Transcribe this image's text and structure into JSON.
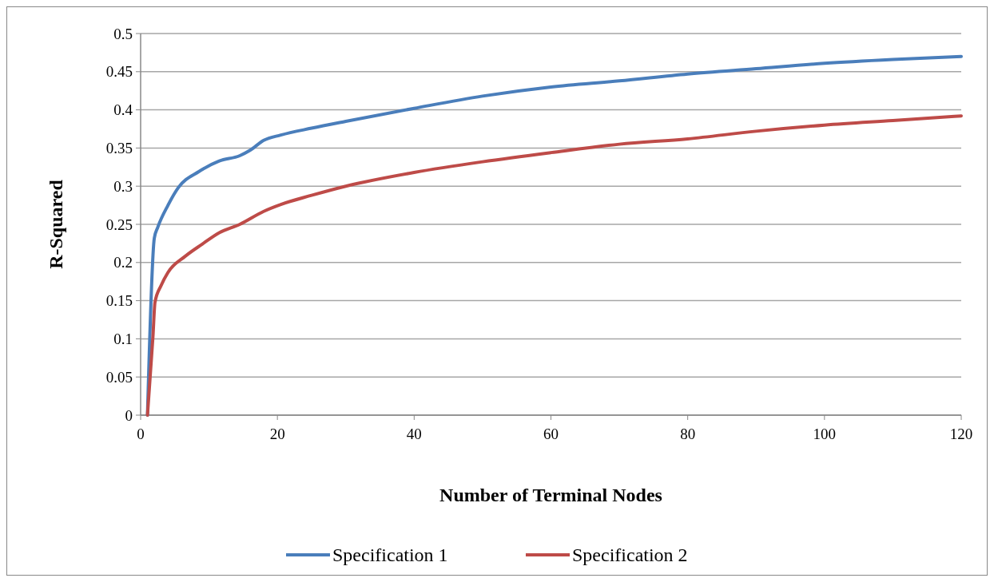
{
  "chart_data": {
    "type": "line",
    "xlabel": "Number of Terminal Nodes",
    "ylabel": "R-Squared",
    "xlim": [
      0,
      120
    ],
    "xticks": [
      0,
      20,
      40,
      60,
      80,
      100,
      120
    ],
    "ylim": [
      0,
      0.5
    ],
    "yticks": [
      0,
      0.05,
      0.1,
      0.15,
      0.2,
      0.25,
      0.3,
      0.35,
      0.4,
      0.45,
      0.5
    ],
    "grid": "y",
    "legend": "bottom",
    "marker": "none",
    "line_style": "solid",
    "series": [
      {
        "name": "Specification 1",
        "color": "#4a7ebb",
        "x": [
          1,
          2,
          2.5,
          4,
          5.5,
          8.5,
          11.5,
          14.5,
          16,
          18,
          20.5,
          25,
          30,
          40,
          50,
          60,
          70,
          80,
          90,
          100,
          110,
          120
        ],
        "values": [
          0,
          0.232,
          0.246,
          0.275,
          0.298,
          0.319,
          0.333,
          0.34,
          0.347,
          0.36,
          0.367,
          0.376,
          0.385,
          0.402,
          0.418,
          0.43,
          0.438,
          0.447,
          0.454,
          0.461,
          0.466,
          0.47
        ]
      },
      {
        "name": "Specification 2",
        "color": "#be4b48",
        "x": [
          1,
          1.8,
          2.1,
          3,
          4,
          6.5,
          9,
          11.5,
          14.5,
          18,
          20.5,
          25,
          30,
          40,
          50,
          60,
          70,
          80,
          90,
          100,
          110,
          120
        ],
        "values": [
          0,
          0.103,
          0.148,
          0.17,
          0.187,
          0.208,
          0.224,
          0.239,
          0.25,
          0.267,
          0.276,
          0.288,
          0.3,
          0.318,
          0.332,
          0.344,
          0.355,
          0.362,
          0.372,
          0.38,
          0.386,
          0.392
        ]
      }
    ]
  }
}
